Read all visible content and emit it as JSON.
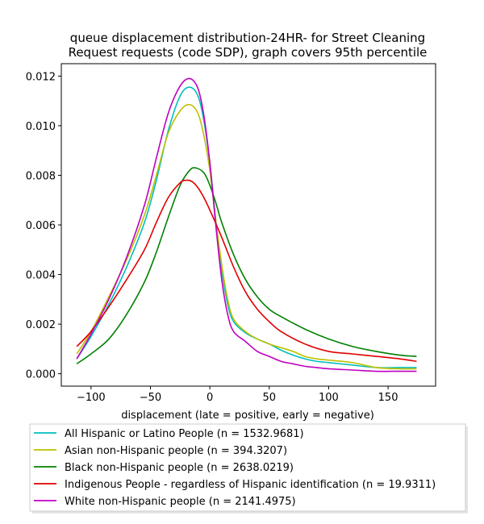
{
  "chart_data": {
    "type": "line",
    "title_lines": [
      "queue displacement distribution-24HR-  for Street Cleaning",
      "Request  requests (code SDP), graph covers 95th percentile"
    ],
    "xlabel": "displacement (late = positive, early = negative)",
    "ylabel": "",
    "xlim": [
      -125,
      190
    ],
    "ylim": [
      -0.0005,
      0.0125
    ],
    "xticks": [
      -100,
      -50,
      0,
      50,
      100,
      150
    ],
    "xtick_labels": [
      "−100",
      "−50",
      "0",
      "50",
      "100",
      "150"
    ],
    "yticks": [
      0.0,
      0.002,
      0.004,
      0.006,
      0.008,
      0.01,
      0.012
    ],
    "ytick_labels": [
      "0.000",
      "0.002",
      "0.004",
      "0.006",
      "0.008",
      "0.010",
      "0.012"
    ],
    "grid": false,
    "legend_position": "below",
    "series": [
      {
        "name": "All Hispanic or Latino People (n = 1532.9681)",
        "color": "#00bfbf",
        "x": [
          -112,
          -100,
          -85,
          -70,
          -55,
          -45,
          -35,
          -25,
          -17,
          -10,
          -5,
          0,
          5,
          10,
          15,
          20,
          30,
          40,
          50,
          60,
          70,
          80,
          90,
          100,
          120,
          140,
          160,
          174
        ],
        "y": [
          0.0006,
          0.0015,
          0.0028,
          0.0043,
          0.0061,
          0.0078,
          0.0098,
          0.0112,
          0.01155,
          0.0112,
          0.0102,
          0.0085,
          0.0062,
          0.0042,
          0.0028,
          0.0021,
          0.00165,
          0.0014,
          0.0012,
          0.00095,
          0.00075,
          0.0006,
          0.0005,
          0.00045,
          0.00035,
          0.00025,
          0.00025,
          0.00025
        ]
      },
      {
        "name": "Asian non-Hispanic people (n = 394.3207)",
        "color": "#bfbf00",
        "x": [
          -112,
          -100,
          -85,
          -70,
          -55,
          -45,
          -35,
          -25,
          -17,
          -10,
          -5,
          0,
          5,
          10,
          15,
          20,
          30,
          40,
          50,
          60,
          70,
          80,
          90,
          100,
          120,
          140,
          160,
          174
        ],
        "y": [
          0.0008,
          0.0017,
          0.0031,
          0.0046,
          0.0064,
          0.008,
          0.0097,
          0.0106,
          0.01085,
          0.0105,
          0.0096,
          0.0082,
          0.0062,
          0.0044,
          0.003,
          0.0022,
          0.0017,
          0.0014,
          0.0012,
          0.00105,
          0.0009,
          0.0007,
          0.0006,
          0.00055,
          0.00045,
          0.00025,
          0.0002,
          0.0002
        ]
      },
      {
        "name": "Black non-Hispanic people (n = 2638.0219)",
        "color": "#008000",
        "x": [
          -112,
          -100,
          -85,
          -70,
          -55,
          -45,
          -35,
          -25,
          -17,
          -12,
          -5,
          0,
          5,
          10,
          20,
          30,
          40,
          50,
          60,
          80,
          100,
          120,
          140,
          160,
          174
        ],
        "y": [
          0.0004,
          0.0008,
          0.0014,
          0.0024,
          0.0037,
          0.0049,
          0.0063,
          0.0076,
          0.0082,
          0.0083,
          0.0081,
          0.0076,
          0.0069,
          0.0061,
          0.0048,
          0.0038,
          0.0031,
          0.0026,
          0.0023,
          0.0018,
          0.0014,
          0.0011,
          0.0009,
          0.00075,
          0.0007
        ]
      },
      {
        "name": "Indigenous People - regardless of Hispanic identification (n = 19.9311)",
        "color": "#e00000",
        "x": [
          -112,
          -100,
          -85,
          -70,
          -55,
          -45,
          -35,
          -25,
          -20,
          -15,
          -10,
          -5,
          0,
          10,
          20,
          30,
          40,
          50,
          60,
          80,
          100,
          120,
          140,
          160,
          174
        ],
        "y": [
          0.0011,
          0.0017,
          0.0027,
          0.0038,
          0.005,
          0.0061,
          0.0071,
          0.0077,
          0.0078,
          0.00775,
          0.0075,
          0.0071,
          0.0066,
          0.0055,
          0.0043,
          0.0033,
          0.0026,
          0.0021,
          0.0017,
          0.0012,
          0.0009,
          0.0008,
          0.0007,
          0.0006,
          0.0005
        ]
      },
      {
        "name": "White non-Hispanic people (n = 2141.4975)",
        "color": "#bf00bf",
        "x": [
          -112,
          -100,
          -85,
          -70,
          -55,
          -45,
          -35,
          -25,
          -17,
          -10,
          -5,
          0,
          5,
          10,
          15,
          20,
          30,
          40,
          50,
          60,
          70,
          80,
          90,
          100,
          120,
          140,
          160,
          174
        ],
        "y": [
          0.0006,
          0.0016,
          0.003,
          0.0047,
          0.0068,
          0.0087,
          0.0105,
          0.0116,
          0.0119,
          0.0115,
          0.0104,
          0.0085,
          0.006,
          0.0038,
          0.0024,
          0.0017,
          0.0013,
          0.0009,
          0.0007,
          0.0005,
          0.0004,
          0.0003,
          0.00025,
          0.0002,
          0.00015,
          0.0001,
          0.0001,
          0.0001
        ]
      }
    ]
  }
}
